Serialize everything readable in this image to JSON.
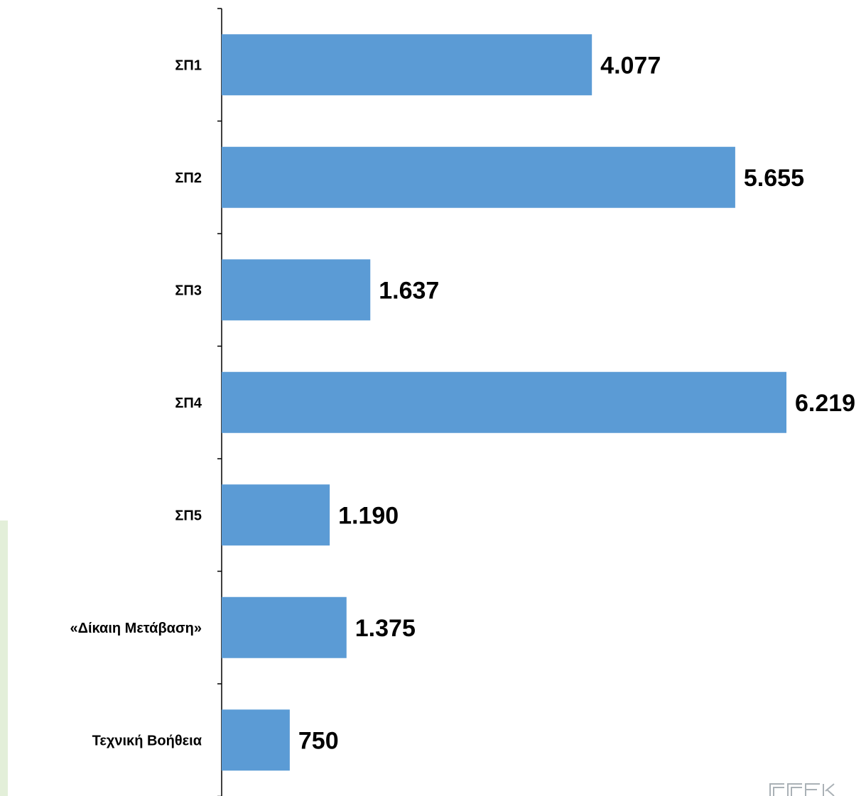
{
  "chart_data": {
    "type": "bar",
    "orientation": "horizontal",
    "categories": [
      "ΣΠ1",
      "ΣΠ2",
      "ΣΠ3",
      "ΣΠ4",
      "ΣΠ5",
      "«Δίκαιη Μετάβαση»",
      "Τεχνική Βοήθεια"
    ],
    "values": [
      4077,
      5655,
      1637,
      6219,
      1190,
      1375,
      750
    ],
    "value_labels": [
      "4.077",
      "5.655",
      "1.637",
      "6.219",
      "1.190",
      "1.375",
      "750"
    ],
    "xlim": [
      0,
      6219
    ],
    "bar_color": "#5b9bd5",
    "grid": false,
    "legend": "none"
  },
  "decoration": {
    "left_panel_color": "#e3efd9",
    "logo_color": "#aab1b6"
  }
}
